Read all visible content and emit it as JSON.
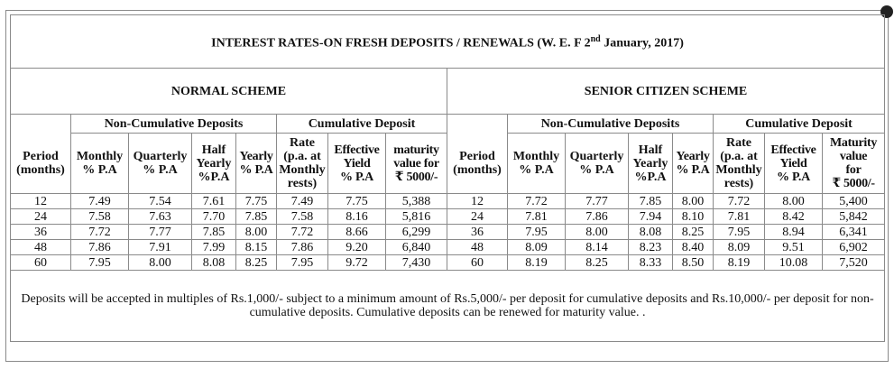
{
  "title_main": "INTEREST RATES-ON FRESH DEPOSITS / RENEWALS (W. E. F 2",
  "title_sup": "nd",
  "title_tail": " January, 2017)",
  "schemes": {
    "normal": "NORMAL SCHEME",
    "senior": "SENIOR CITIZEN SCHEME"
  },
  "groups": {
    "non_cum": "Non-Cumulative Deposits",
    "cum": "Cumulative Deposit"
  },
  "headers": {
    "period_1": "Period",
    "period_2": "(months)",
    "monthly_1": "Monthly",
    "monthly_2": "% P.A",
    "quarterly_1": "Quarterly",
    "quarterly_2": "% P.A",
    "half_1": "Half",
    "half_2": "Yearly",
    "half_3": "%P.A",
    "yearly_1": "Yearly",
    "yearly_2": "% P.A",
    "rate_1": "Rate",
    "rate_2": "(p.a. at",
    "rate_3": "Monthly",
    "rate_4": "rests)",
    "eff_1": "Effective",
    "eff_2": "Yield",
    "eff_3": "% P.A",
    "mat_1": "maturity",
    "mat_2": "value for",
    "mat_3": "₹ 5000/-",
    "s_mat_1": "Maturity",
    "s_mat_2": "value",
    "s_mat_3": "for",
    "s_mat_4": "₹ 5000/-"
  },
  "normal_rows": [
    [
      "12",
      "7.49",
      "7.54",
      "7.61",
      "7.75",
      "7.49",
      "7.75",
      "5,388"
    ],
    [
      "24",
      "7.58",
      "7.63",
      "7.70",
      "7.85",
      "7.58",
      "8.16",
      "5,816"
    ],
    [
      "36",
      "7.72",
      "7.77",
      "7.85",
      "8.00",
      "7.72",
      "8.66",
      "6,299"
    ],
    [
      "48",
      "7.86",
      "7.91",
      "7.99",
      "8.15",
      "7.86",
      "9.20",
      "6,840"
    ],
    [
      "60",
      "7.95",
      "8.00",
      "8.08",
      "8.25",
      "7.95",
      "9.72",
      "7,430"
    ]
  ],
  "senior_rows": [
    [
      "12",
      "7.72",
      "7.77",
      "7.85",
      "8.00",
      "7.72",
      "8.00",
      "5,400"
    ],
    [
      "24",
      "7.81",
      "7.86",
      "7.94",
      "8.10",
      "7.81",
      "8.42",
      "5,842"
    ],
    [
      "36",
      "7.95",
      "8.00",
      "8.08",
      "8.25",
      "7.95",
      "8.94",
      "6,341"
    ],
    [
      "48",
      "8.09",
      "8.14",
      "8.23",
      "8.40",
      "8.09",
      "9.51",
      "6,902"
    ],
    [
      "60",
      "8.19",
      "8.25",
      "8.33",
      "8.50",
      "8.19",
      "10.08",
      "7,520"
    ]
  ],
  "footer": "Deposits will be accepted in multiples of Rs.1,000/- subject to a minimum amount of Rs.5,000/- per deposit for cumulative deposits and Rs.10,000/- per deposit for non-cumulative deposits. Cumulative deposits can be renewed for maturity value. ."
}
